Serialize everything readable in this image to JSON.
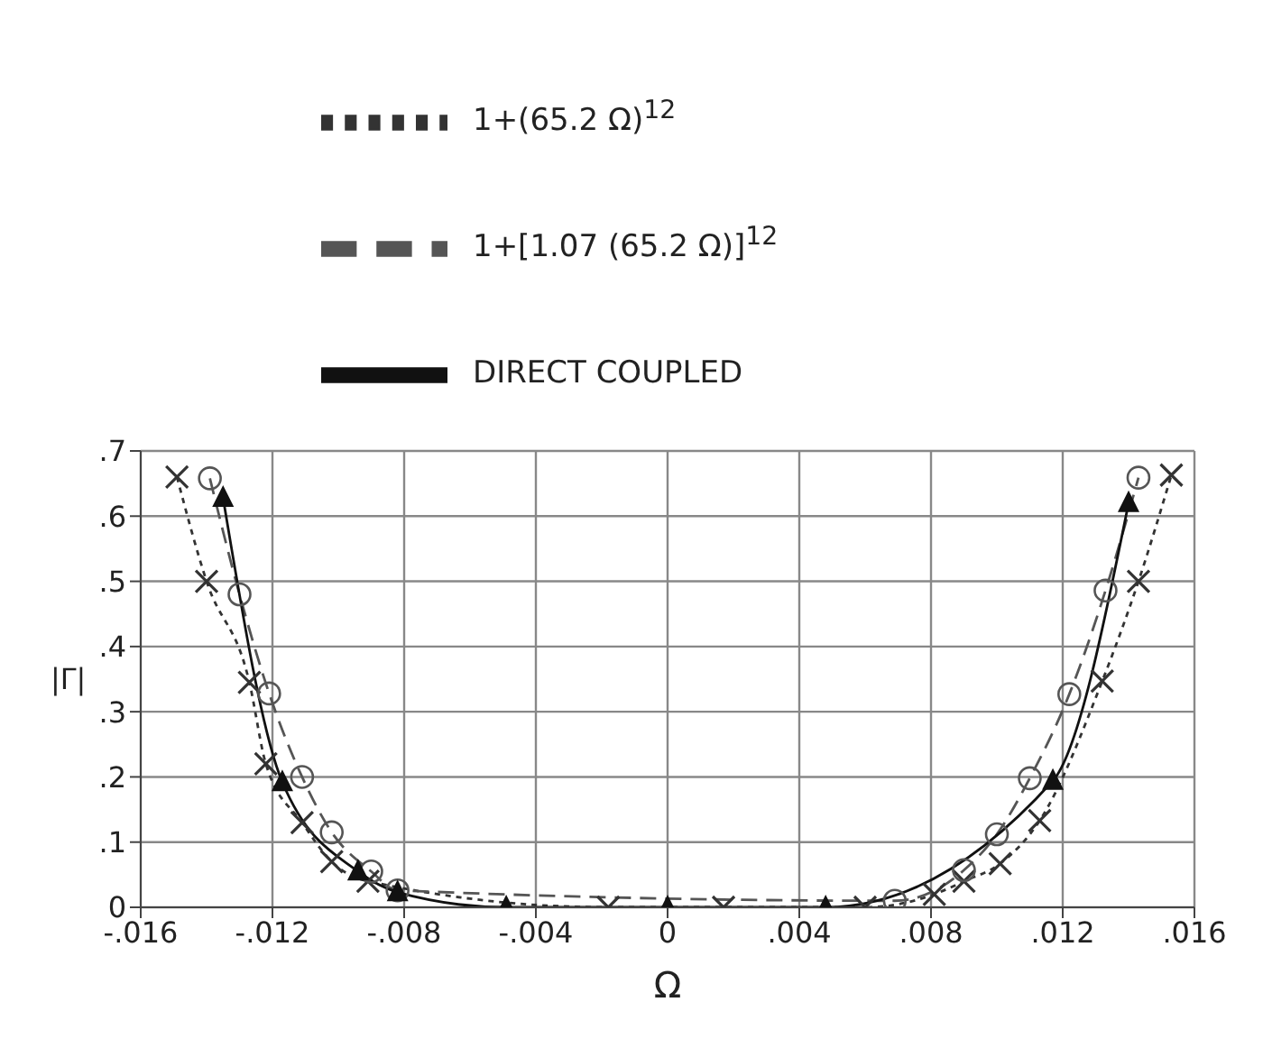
{
  "chart_data": {
    "type": "line",
    "xlabel": "Ω",
    "ylabel": "|Γ|",
    "xlim": [
      -0.016,
      0.016
    ],
    "ylim": [
      0,
      0.7
    ],
    "xticks": [
      {
        "value": -0.016,
        "label": "-.016"
      },
      {
        "value": -0.012,
        "label": "-.012"
      },
      {
        "value": -0.008,
        "label": "-.008"
      },
      {
        "value": -0.004,
        "label": "-.004"
      },
      {
        "value": 0,
        "label": "0"
      },
      {
        "value": 0.004,
        "label": ".004"
      },
      {
        "value": 0.008,
        "label": ".008"
      },
      {
        "value": 0.012,
        "label": ".012"
      },
      {
        "value": 0.016,
        "label": ".016"
      }
    ],
    "yticks": [
      {
        "value": 0,
        "label": "0"
      },
      {
        "value": 0.1,
        "label": ".1"
      },
      {
        "value": 0.2,
        "label": ".2"
      },
      {
        "value": 0.3,
        "label": ".3"
      },
      {
        "value": 0.4,
        "label": ".4"
      },
      {
        "value": 0.5,
        "label": ".5"
      },
      {
        "value": 0.6,
        "label": ".6"
      },
      {
        "value": 0.7,
        "label": ".7"
      }
    ],
    "grid": true,
    "legend": "top",
    "series": [
      {
        "name": "1+(65.2 Ω)$^{12}$",
        "color": "#333333",
        "marker": "cross",
        "line_style": "dotted",
        "x": [
          -0.0149,
          -0.014,
          -0.0127,
          -0.0122,
          -0.0111,
          -0.0102,
          -0.0091,
          -0.0018,
          0.0017,
          0.006,
          0.0081,
          0.009,
          0.0101,
          0.0113,
          0.0132,
          0.0143,
          0.0153
        ],
        "values": [
          0.66,
          0.5,
          0.345,
          0.22,
          0.13,
          0.07,
          0.04,
          0,
          0,
          0,
          0.02,
          0.04,
          0.067,
          0.133,
          0.347,
          0.5,
          0.663
        ]
      },
      {
        "name": "1+[1.07 (65.2 Ω)]$^{12}$",
        "color": "#555555",
        "marker": "circle",
        "line_style": "dashed",
        "x": [
          -0.0139,
          -0.013,
          -0.0121,
          -0.0111,
          -0.0102,
          -0.009,
          -0.0082,
          0.0069,
          0.009,
          0.01,
          0.011,
          0.0122,
          0.0133,
          0.0143
        ],
        "values": [
          0.658,
          0.48,
          0.328,
          0.2,
          0.115,
          0.055,
          0.026,
          0.01,
          0.057,
          0.112,
          0.198,
          0.327,
          0.486,
          0.659
        ]
      },
      {
        "name": "DIRECT COUPLED",
        "color": "#111111",
        "marker": "triangle",
        "line_style": "solid",
        "x": [
          -0.0135,
          -0.0117,
          -0.0094,
          -0.0082,
          -0.0049,
          0,
          0.0048,
          0.0117,
          0.014
        ],
        "values": [
          0.628,
          0.192,
          0.055,
          0.023,
          0,
          0,
          0,
          0.194,
          0.62
        ]
      }
    ]
  }
}
